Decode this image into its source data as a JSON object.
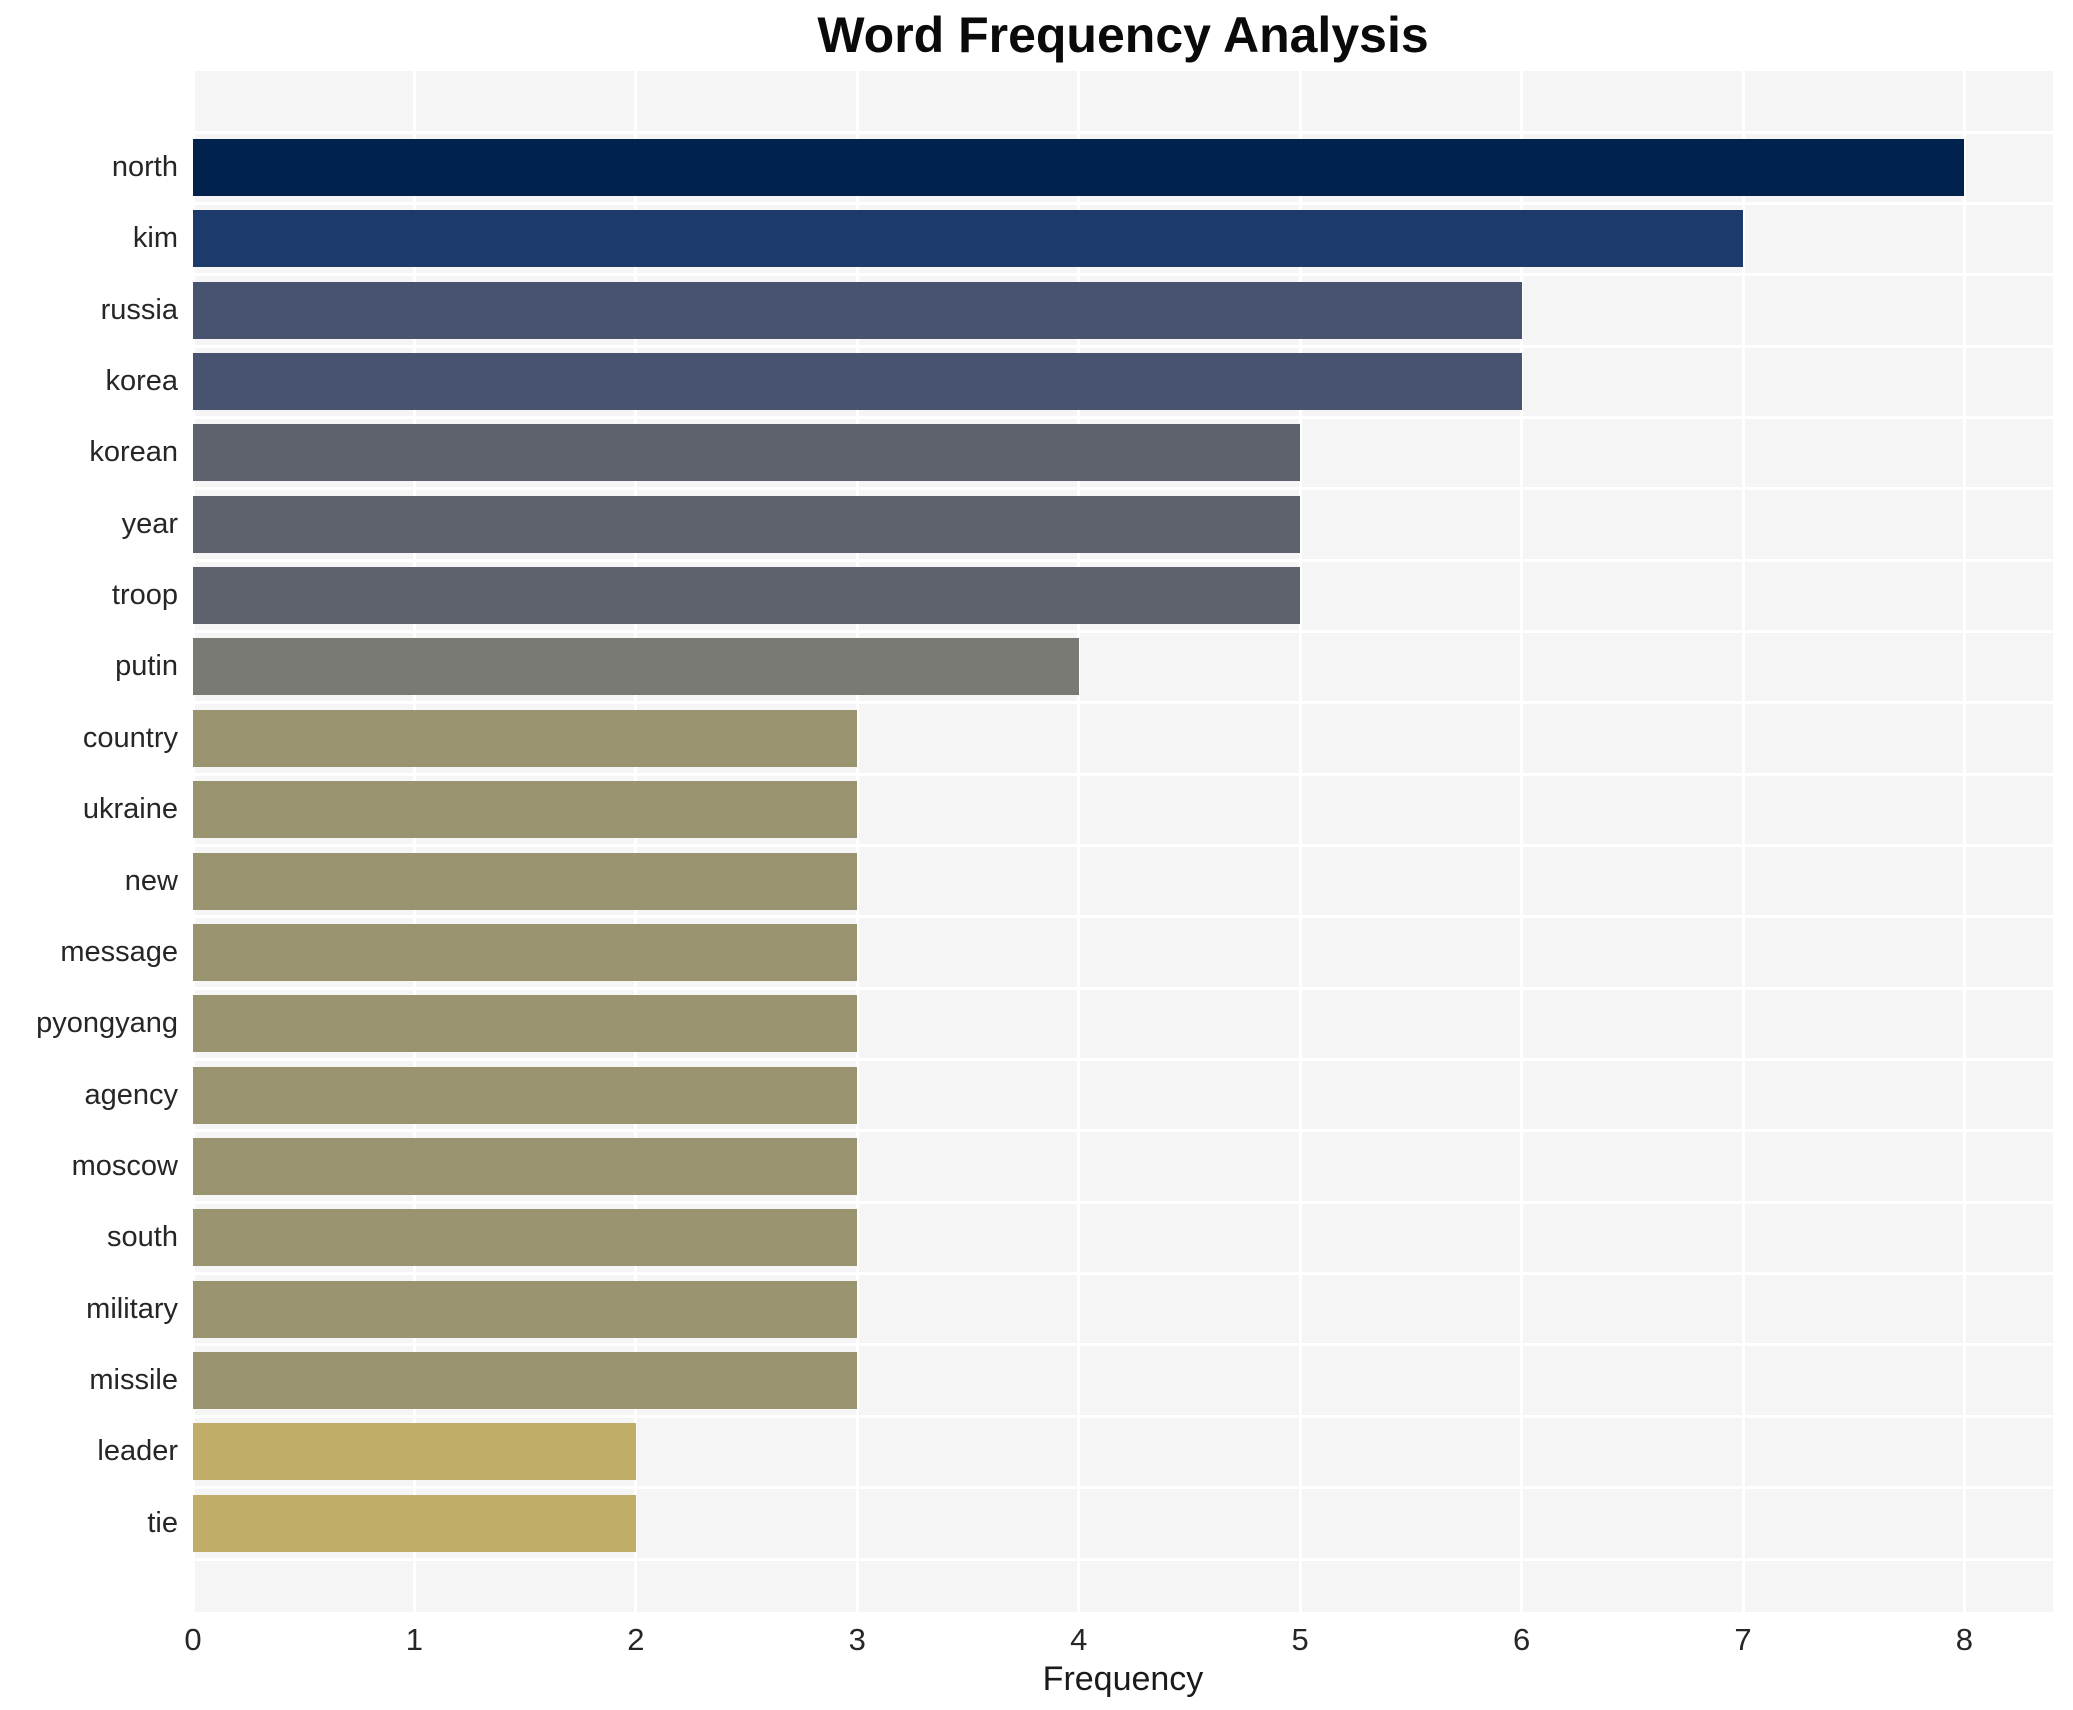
{
  "chart_data": {
    "type": "bar",
    "orientation": "horizontal",
    "title": "Word Frequency Analysis",
    "xlabel": "Frequency",
    "ylabel": "",
    "categories": [
      "north",
      "kim",
      "russia",
      "korea",
      "korean",
      "year",
      "troop",
      "putin",
      "country",
      "ukraine",
      "new",
      "message",
      "pyongyang",
      "agency",
      "moscow",
      "south",
      "military",
      "missile",
      "leader",
      "tie"
    ],
    "values": [
      8,
      7,
      6,
      6,
      5,
      5,
      5,
      4,
      3,
      3,
      3,
      3,
      3,
      3,
      3,
      3,
      3,
      3,
      2,
      2
    ],
    "bar_colors": [
      "#00224d",
      "#1d3a6c",
      "#47536f",
      "#47536f",
      "#5e626d",
      "#5e626d",
      "#5e626d",
      "#797a73",
      "#9a9370",
      "#9a9370",
      "#9a9370",
      "#9a9370",
      "#9a9370",
      "#9a9370",
      "#9a9370",
      "#9a9370",
      "#9a9370",
      "#9a9370",
      "#c0ad68",
      "#c0ad68"
    ],
    "xticks": [
      0,
      1,
      2,
      3,
      4,
      5,
      6,
      7,
      8
    ],
    "xlim": [
      0,
      8.4
    ],
    "grid": true,
    "legend": "none",
    "plot_background": "#f5f5f6",
    "grid_color": "#ffffff"
  }
}
